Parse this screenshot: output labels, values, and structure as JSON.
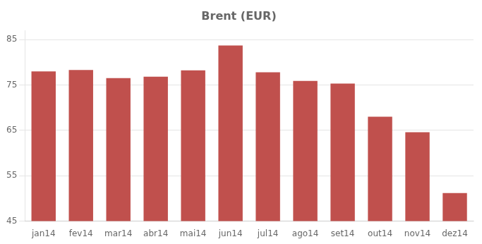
{
  "chart_data": {
    "type": "bar",
    "title": "Brent (EUR)",
    "categories": [
      "jan14",
      "fev14",
      "mar14",
      "abr14",
      "mai14",
      "jun14",
      "jul14",
      "ago14",
      "set14",
      "out14",
      "nov14",
      "dez14"
    ],
    "values": [
      78.0,
      78.3,
      76.5,
      76.8,
      78.2,
      83.7,
      77.8,
      75.9,
      75.3,
      68.0,
      64.6,
      51.2
    ],
    "color": "#c0504d",
    "ylim": [
      45,
      87
    ],
    "yticks": [
      45,
      55,
      65,
      75,
      85
    ],
    "grid": true
  }
}
